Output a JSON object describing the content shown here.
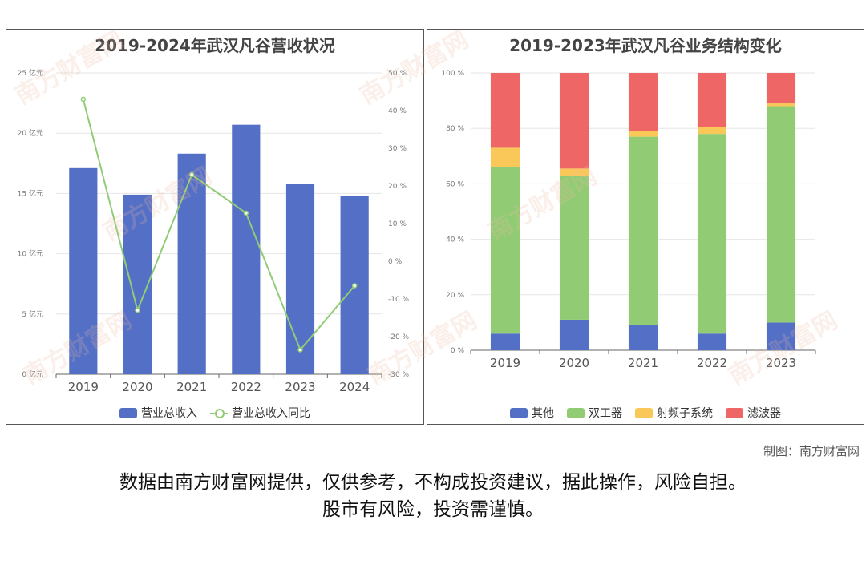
{
  "charts": {
    "left_title": "2019-2024年武汉凡谷营收状况",
    "right_title": "2019-2023年武汉凡谷业务结构变化"
  },
  "chart_data": [
    {
      "type": "bar",
      "title": "2019-2024年武汉凡谷营收状况",
      "categories": [
        "2019",
        "2020",
        "2021",
        "2022",
        "2023",
        "2024"
      ],
      "series": [
        {
          "name": "营业总收入",
          "type": "bar",
          "axis": "left",
          "color": "#5470c6",
          "values": [
            17.1,
            14.9,
            18.3,
            20.7,
            15.8,
            14.8
          ]
        },
        {
          "name": "营业总收入同比",
          "type": "line",
          "axis": "right",
          "color": "#91cc75",
          "values": [
            43.0,
            -13.0,
            23.0,
            12.8,
            -23.5,
            -6.5
          ]
        }
      ],
      "left_axis": {
        "ticks": [
          "0 亿元",
          "5 亿元",
          "10 亿元",
          "15 亿元",
          "20 亿元",
          "25 亿元"
        ],
        "ylim": [
          0,
          25
        ]
      },
      "right_axis": {
        "ticks": [
          "-30 %",
          "-20 %",
          "-10 %",
          "0 %",
          "10 %",
          "20 %",
          "30 %",
          "40 %",
          "50 %"
        ],
        "ylim": [
          -30,
          50
        ]
      },
      "grid": true,
      "legend": "bottom"
    },
    {
      "type": "bar",
      "stacked": true,
      "title": "2019-2023年武汉凡谷业务结构变化",
      "categories": [
        "2019",
        "2020",
        "2021",
        "2022",
        "2023"
      ],
      "series": [
        {
          "name": "其他",
          "color": "#5470c6",
          "values": [
            6,
            11,
            9,
            6,
            10
          ]
        },
        {
          "name": "双工器",
          "color": "#91cc75",
          "values": [
            60,
            52,
            68,
            72,
            78
          ]
        },
        {
          "name": "射频子系统",
          "color": "#fac858",
          "values": [
            7,
            2.5,
            2,
            2.5,
            1
          ]
        },
        {
          "name": "滤波器",
          "color": "#ee6666",
          "values": [
            27,
            34.5,
            21,
            19.5,
            11
          ]
        }
      ],
      "y_axis": {
        "ticks": [
          "0 %",
          "20 %",
          "40 %",
          "60 %",
          "80 %",
          "100 %"
        ],
        "ylim": [
          0,
          100
        ]
      },
      "grid": true,
      "legend": "bottom"
    }
  ],
  "footer": {
    "credit": "制图：南方财富网",
    "disclaimer_line1": "数据由南方财富网提供，仅供参考，不构成投资建议，据此操作，风险自担。",
    "disclaimer_line2": "股市有风险，投资需谨慎。"
  },
  "watermark": {
    "text": "南方财富网"
  }
}
